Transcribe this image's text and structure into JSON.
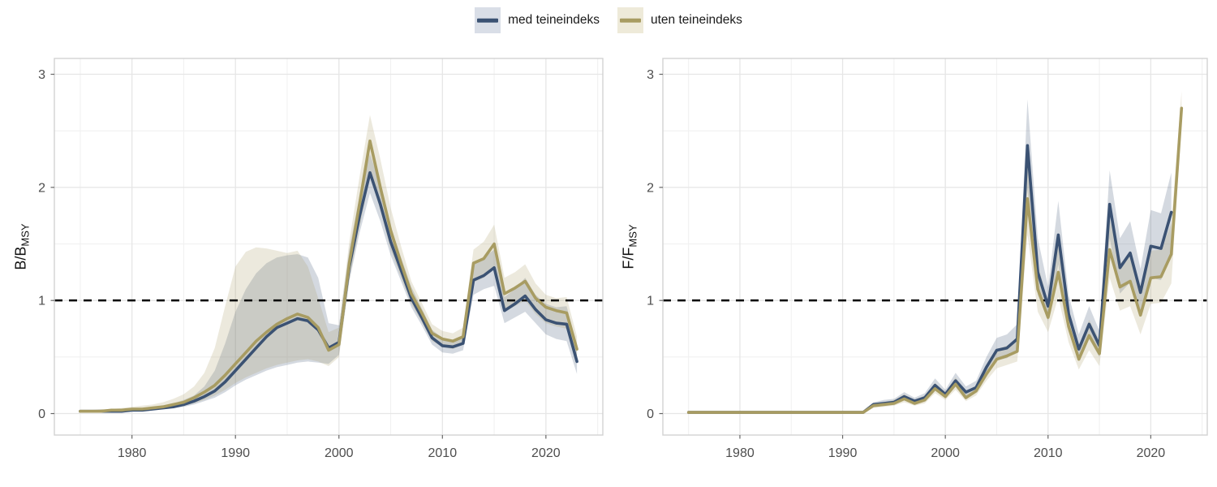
{
  "page": {
    "background": "#ffffff"
  },
  "legend": {
    "items": [
      {
        "label": "med teineindeks",
        "line_color": "#3b5273",
        "fill_color": "#d9dee7"
      },
      {
        "label": "uten teineindeks",
        "line_color": "#a89c62",
        "fill_color": "#eeead9"
      }
    ]
  },
  "style": {
    "grid_major": "#e6e6e6",
    "grid_minor": "#f1f1f1",
    "panel_border": "#d2d2d2",
    "tick_mark": "#666666",
    "tick_label_color": "#4d4d4d",
    "ref_line_color": "#000000",
    "ribbon_opacity": 0.22
  },
  "chart_data": [
    {
      "type": "line",
      "title": "",
      "ylabel_main": "B/B",
      "ylabel_sub": "MSY",
      "xlabel": "",
      "x_ticks": [
        1980,
        1990,
        2000,
        2010,
        2020
      ],
      "x_minor": [
        1975,
        1985,
        1995,
        2005,
        2015,
        2025
      ],
      "y_ticks": [
        0,
        1,
        2,
        3
      ],
      "y_minor": [
        0.5,
        1.5,
        2.5
      ],
      "xlim": [
        1972.5,
        2025.5
      ],
      "ylim": [
        -0.19,
        3.14
      ],
      "reference_line_y": 1,
      "grid": true,
      "legend_position": "top",
      "series": [
        {
          "name": "med teineindeks",
          "color": "#3b5273",
          "year_start": 1975,
          "values": [
            0.02,
            0.02,
            0.02,
            0.02,
            0.02,
            0.03,
            0.03,
            0.04,
            0.05,
            0.06,
            0.08,
            0.11,
            0.15,
            0.2,
            0.28,
            0.38,
            0.48,
            0.58,
            0.68,
            0.76,
            0.8,
            0.84,
            0.82,
            0.74,
            0.58,
            0.63,
            1.3,
            1.75,
            2.13,
            1.85,
            1.52,
            1.27,
            1.02,
            0.85,
            0.67,
            0.6,
            0.59,
            0.62,
            1.18,
            1.22,
            1.29,
            0.91,
            0.97,
            1.04,
            0.92,
            0.83,
            0.8,
            0.79,
            0.46
          ],
          "lower": [
            0.01,
            0.01,
            0.01,
            0.01,
            0.01,
            0.02,
            0.02,
            0.03,
            0.04,
            0.05,
            0.06,
            0.08,
            0.11,
            0.14,
            0.19,
            0.25,
            0.3,
            0.34,
            0.38,
            0.41,
            0.43,
            0.45,
            0.46,
            0.45,
            0.44,
            0.52,
            1.17,
            1.6,
            1.95,
            1.7,
            1.4,
            1.17,
            0.94,
            0.78,
            0.61,
            0.54,
            0.53,
            0.56,
            1.05,
            1.1,
            1.13,
            0.8,
            0.85,
            0.9,
            0.8,
            0.7,
            0.66,
            0.64,
            0.35
          ],
          "upper": [
            0.03,
            0.03,
            0.03,
            0.03,
            0.04,
            0.04,
            0.05,
            0.06,
            0.07,
            0.09,
            0.12,
            0.16,
            0.24,
            0.38,
            0.62,
            0.9,
            1.1,
            1.24,
            1.33,
            1.38,
            1.4,
            1.41,
            1.38,
            1.2,
            0.8,
            0.78,
            1.45,
            1.93,
            2.3,
            2.02,
            1.66,
            1.38,
            1.12,
            0.93,
            0.74,
            0.67,
            0.65,
            0.69,
            1.32,
            1.38,
            1.45,
            1.03,
            1.1,
            1.2,
            1.05,
            0.97,
            0.94,
            0.95,
            0.6
          ]
        },
        {
          "name": "uten teineindeks",
          "color": "#a89c62",
          "year_start": 1975,
          "values": [
            0.02,
            0.02,
            0.02,
            0.03,
            0.03,
            0.04,
            0.04,
            0.05,
            0.06,
            0.08,
            0.1,
            0.14,
            0.19,
            0.25,
            0.34,
            0.44,
            0.54,
            0.64,
            0.72,
            0.79,
            0.84,
            0.88,
            0.85,
            0.76,
            0.56,
            0.61,
            1.33,
            1.86,
            2.41,
            2.0,
            1.62,
            1.33,
            1.06,
            0.89,
            0.71,
            0.66,
            0.64,
            0.68,
            1.33,
            1.37,
            1.5,
            1.06,
            1.11,
            1.17,
            1.02,
            0.94,
            0.91,
            0.89,
            0.57
          ],
          "lower": [
            0.01,
            0.01,
            0.01,
            0.02,
            0.02,
            0.02,
            0.03,
            0.03,
            0.04,
            0.06,
            0.07,
            0.09,
            0.12,
            0.16,
            0.21,
            0.27,
            0.32,
            0.36,
            0.4,
            0.43,
            0.45,
            0.47,
            0.48,
            0.46,
            0.42,
            0.5,
            1.18,
            1.65,
            2.1,
            1.8,
            1.45,
            1.2,
            0.97,
            0.81,
            0.64,
            0.59,
            0.57,
            0.61,
            1.16,
            1.2,
            1.28,
            0.9,
            0.95,
            1.0,
            0.88,
            0.8,
            0.77,
            0.75,
            0.47
          ],
          "upper": [
            0.03,
            0.03,
            0.04,
            0.04,
            0.05,
            0.06,
            0.07,
            0.08,
            0.1,
            0.13,
            0.17,
            0.24,
            0.36,
            0.58,
            0.95,
            1.3,
            1.43,
            1.47,
            1.46,
            1.44,
            1.42,
            1.44,
            1.3,
            1.02,
            0.72,
            0.76,
            1.52,
            2.1,
            2.64,
            2.25,
            1.82,
            1.48,
            1.17,
            0.98,
            0.79,
            0.73,
            0.71,
            0.76,
            1.45,
            1.52,
            1.67,
            1.2,
            1.25,
            1.32,
            1.15,
            1.05,
            1.02,
            1.03,
            0.68
          ]
        }
      ]
    },
    {
      "type": "line",
      "title": "",
      "ylabel_main": "F/F",
      "ylabel_sub": "MSY",
      "xlabel": "",
      "x_ticks": [
        1980,
        1990,
        2000,
        2010,
        2020
      ],
      "x_minor": [
        1975,
        1985,
        1995,
        2005,
        2015,
        2025
      ],
      "y_ticks": [
        0,
        1,
        2,
        3
      ],
      "y_minor": [
        0.5,
        1.5,
        2.5
      ],
      "xlim": [
        1972.5,
        2025.5
      ],
      "ylim": [
        -0.19,
        3.14
      ],
      "reference_line_y": 1,
      "grid": true,
      "legend_position": "top",
      "series": [
        {
          "name": "med teineindeks",
          "color": "#3b5273",
          "year_start": 1975,
          "values": [
            0.01,
            0.01,
            0.01,
            0.01,
            0.01,
            0.01,
            0.01,
            0.01,
            0.01,
            0.01,
            0.01,
            0.01,
            0.01,
            0.01,
            0.01,
            0.01,
            0.01,
            0.01,
            0.08,
            0.09,
            0.1,
            0.15,
            0.11,
            0.14,
            0.25,
            0.17,
            0.29,
            0.19,
            0.23,
            0.41,
            0.56,
            0.58,
            0.66,
            2.37,
            1.25,
            0.95,
            1.58,
            0.88,
            0.57,
            0.79,
            0.6,
            1.85,
            1.29,
            1.42,
            1.07,
            1.48,
            1.46,
            1.78
          ],
          "lower": [
            0.005,
            0.005,
            0.005,
            0.005,
            0.005,
            0.005,
            0.005,
            0.005,
            0.005,
            0.005,
            0.005,
            0.005,
            0.005,
            0.005,
            0.005,
            0.005,
            0.005,
            0.005,
            0.06,
            0.07,
            0.08,
            0.12,
            0.09,
            0.11,
            0.21,
            0.14,
            0.24,
            0.15,
            0.19,
            0.34,
            0.47,
            0.49,
            0.56,
            1.98,
            1.05,
            0.82,
            1.32,
            0.73,
            0.47,
            0.66,
            0.5,
            1.55,
            1.06,
            1.16,
            0.88,
            1.2,
            1.18,
            1.45
          ],
          "upper": [
            0.02,
            0.02,
            0.02,
            0.02,
            0.02,
            0.02,
            0.02,
            0.02,
            0.02,
            0.02,
            0.02,
            0.02,
            0.02,
            0.02,
            0.02,
            0.02,
            0.02,
            0.02,
            0.1,
            0.12,
            0.13,
            0.19,
            0.14,
            0.18,
            0.31,
            0.21,
            0.36,
            0.24,
            0.29,
            0.5,
            0.67,
            0.7,
            0.79,
            2.78,
            1.55,
            1.12,
            1.88,
            1.05,
            0.7,
            0.95,
            0.73,
            2.15,
            1.55,
            1.7,
            1.28,
            1.8,
            1.77,
            2.13
          ]
        },
        {
          "name": "uten teineindeks",
          "color": "#a89c62",
          "year_start": 1975,
          "values": [
            0.01,
            0.01,
            0.01,
            0.01,
            0.01,
            0.01,
            0.01,
            0.01,
            0.01,
            0.01,
            0.01,
            0.01,
            0.01,
            0.01,
            0.01,
            0.01,
            0.01,
            0.01,
            0.07,
            0.08,
            0.09,
            0.13,
            0.09,
            0.12,
            0.22,
            0.15,
            0.26,
            0.14,
            0.2,
            0.35,
            0.48,
            0.51,
            0.55,
            1.9,
            1.1,
            0.85,
            1.25,
            0.77,
            0.48,
            0.69,
            0.53,
            1.45,
            1.12,
            1.17,
            0.87,
            1.2,
            1.21,
            1.41,
            2.7
          ],
          "lower": [
            0.005,
            0.005,
            0.005,
            0.005,
            0.005,
            0.005,
            0.005,
            0.005,
            0.005,
            0.005,
            0.005,
            0.005,
            0.005,
            0.005,
            0.005,
            0.005,
            0.005,
            0.005,
            0.05,
            0.06,
            0.07,
            0.1,
            0.07,
            0.09,
            0.18,
            0.12,
            0.21,
            0.11,
            0.16,
            0.29,
            0.4,
            0.43,
            0.46,
            1.58,
            0.9,
            0.72,
            1.03,
            0.63,
            0.39,
            0.56,
            0.42,
            1.2,
            0.91,
            0.95,
            0.7,
            0.97,
            0.98,
            1.15,
            2.55
          ],
          "upper": [
            0.02,
            0.02,
            0.02,
            0.02,
            0.02,
            0.02,
            0.02,
            0.02,
            0.02,
            0.02,
            0.02,
            0.02,
            0.02,
            0.02,
            0.02,
            0.02,
            0.02,
            0.02,
            0.09,
            0.1,
            0.12,
            0.17,
            0.12,
            0.16,
            0.27,
            0.19,
            0.32,
            0.18,
            0.25,
            0.42,
            0.57,
            0.6,
            0.65,
            2.25,
            1.32,
            0.99,
            1.48,
            0.92,
            0.58,
            0.83,
            0.65,
            1.72,
            1.33,
            1.4,
            1.05,
            1.44,
            1.45,
            1.68,
            2.85
          ]
        }
      ]
    }
  ]
}
